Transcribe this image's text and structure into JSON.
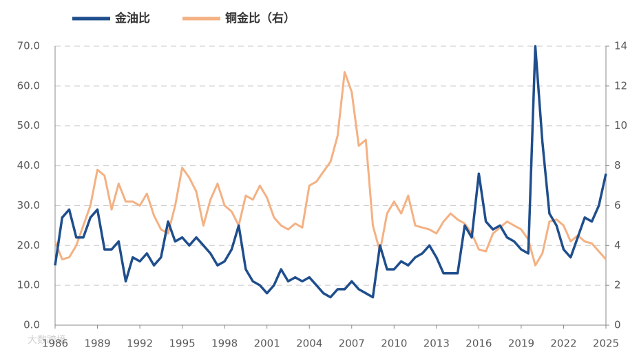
{
  "chart_data": {
    "type": "line",
    "x": [
      1986,
      1986.5,
      1987,
      1987.5,
      1988,
      1988.5,
      1989,
      1989.5,
      1990,
      1990.5,
      1991,
      1991.5,
      1992,
      1992.5,
      1993,
      1993.5,
      1994,
      1994.5,
      1995,
      1995.5,
      1996,
      1996.5,
      1997,
      1997.5,
      1998,
      1998.5,
      1999,
      1999.5,
      2000,
      2000.5,
      2001,
      2001.5,
      2002,
      2002.5,
      2003,
      2003.5,
      2004,
      2004.5,
      2005,
      2005.5,
      2006,
      2006.5,
      2007,
      2007.5,
      2008,
      2008.5,
      2009,
      2009.5,
      2010,
      2010.5,
      2011,
      2011.5,
      2012,
      2012.5,
      2013,
      2013.5,
      2014,
      2014.5,
      2015,
      2015.5,
      2016,
      2016.5,
      2017,
      2017.5,
      2018,
      2018.5,
      2019,
      2019.5,
      2020,
      2020.5,
      2021,
      2021.5,
      2022,
      2022.5,
      2023,
      2023.5,
      2024,
      2024.5,
      2025
    ],
    "series": [
      {
        "name": "金油比",
        "color": "#1f4e8c",
        "values": [
          15,
          27,
          29,
          22,
          22,
          27,
          29,
          19,
          19,
          21,
          11,
          17,
          16,
          18,
          15,
          17,
          26,
          21,
          22,
          20,
          22,
          20,
          18,
          15,
          16,
          19,
          25,
          14,
          11,
          10,
          8,
          10,
          14,
          11,
          12,
          11,
          12,
          10,
          8,
          7,
          9,
          9,
          11,
          9,
          8,
          7,
          20,
          14,
          14,
          16,
          15,
          17,
          18,
          20,
          17,
          13,
          13,
          13,
          25,
          22,
          38,
          26,
          24,
          25,
          22,
          21,
          19,
          18,
          70,
          46,
          28,
          25,
          19,
          17,
          22,
          27,
          26,
          30,
          38
        ]
      },
      {
        "name": "铜金比（右）",
        "color": "#f4b183",
        "axis": "y2",
        "values": [
          4.2,
          3.3,
          3.4,
          4.0,
          5.0,
          6.0,
          7.8,
          7.5,
          5.8,
          7.1,
          6.2,
          6.2,
          6.0,
          6.6,
          5.5,
          4.8,
          4.6,
          6.0,
          7.9,
          7.4,
          6.7,
          5.0,
          6.3,
          7.1,
          6.0,
          5.7,
          5.0,
          6.5,
          6.3,
          7.0,
          6.4,
          5.4,
          5.0,
          4.8,
          5.1,
          4.9,
          7.0,
          7.2,
          7.7,
          8.2,
          9.5,
          12.7,
          11.7,
          9.0,
          9.3,
          5.0,
          3.7,
          5.6,
          6.2,
          5.6,
          6.5,
          5.0,
          4.9,
          4.8,
          4.6,
          5.2,
          5.6,
          5.3,
          5.1,
          4.6,
          3.8,
          3.7,
          4.6,
          4.9,
          5.2,
          5.0,
          4.8,
          4.3,
          3.0,
          3.6,
          5.2,
          5.3,
          5.0,
          4.2,
          4.5,
          4.2,
          4.1,
          3.7,
          3.3
        ]
      }
    ],
    "xlim": [
      1986,
      2025
    ],
    "xticks": [
      1986,
      1989,
      1992,
      1995,
      1998,
      2001,
      2004,
      2007,
      2010,
      2013,
      2016,
      2019,
      2022,
      2025
    ],
    "ylim": [
      0,
      70
    ],
    "yticks": [
      {
        "value": 0,
        "label": "0.0"
      },
      {
        "value": 10,
        "label": "10.0"
      },
      {
        "value": 20,
        "label": "20.0"
      },
      {
        "value": 30,
        "label": "30.0"
      },
      {
        "value": 40,
        "label": "40.0"
      },
      {
        "value": 50,
        "label": "50.0"
      },
      {
        "value": 60,
        "label": "60.0"
      },
      {
        "value": 70,
        "label": "70.0"
      }
    ],
    "y2lim": [
      0,
      14
    ],
    "y2ticks": [
      0,
      2,
      4,
      6,
      8,
      10,
      12,
      14
    ],
    "grid": true,
    "legend": "top",
    "watermark": "大数跨境"
  }
}
